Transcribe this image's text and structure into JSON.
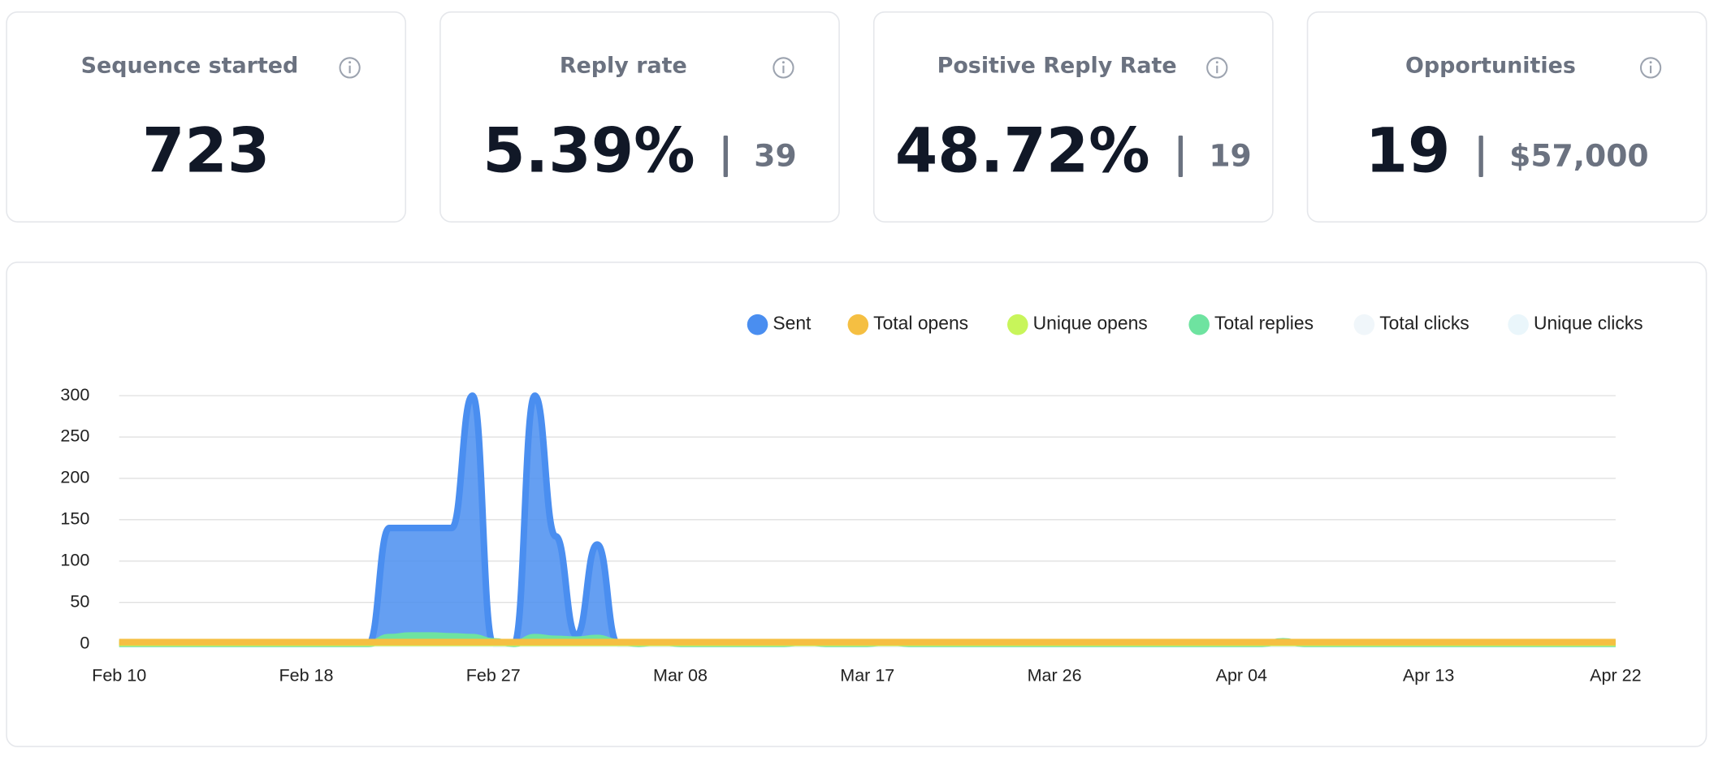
{
  "cards": [
    {
      "title": "Sequence started",
      "value": "723"
    },
    {
      "title": "Reply rate",
      "value": "5.39%",
      "secondary": "39"
    },
    {
      "title": "Positive Reply Rate",
      "value": "48.72%",
      "secondary": "19"
    },
    {
      "title": "Opportunities",
      "value": "19",
      "secondary": "$57,000"
    }
  ],
  "chart_data": {
    "type": "area",
    "legend": "top-right",
    "grid": true,
    "ylim": [
      0,
      300
    ],
    "yticks": [
      0,
      50,
      100,
      150,
      200,
      250,
      300
    ],
    "categories": [
      "Feb 10",
      null,
      null,
      null,
      null,
      null,
      null,
      null,
      null,
      "Feb 18",
      null,
      null,
      null,
      null,
      null,
      null,
      null,
      null,
      "Feb 27",
      null,
      null,
      null,
      null,
      null,
      null,
      null,
      null,
      "Mar 08",
      null,
      null,
      null,
      null,
      null,
      null,
      null,
      null,
      "Mar 17",
      null,
      null,
      null,
      null,
      null,
      null,
      null,
      null,
      "Mar 26",
      null,
      null,
      null,
      null,
      null,
      null,
      null,
      null,
      "Apr 04",
      null,
      null,
      null,
      null,
      null,
      null,
      null,
      null,
      "Apr 13",
      null,
      null,
      null,
      null,
      null,
      null,
      null,
      null,
      "Apr 22"
    ],
    "series": [
      {
        "name": "Sent",
        "color": "#4a8ef0",
        "values": [
          0,
          0,
          0,
          0,
          0,
          0,
          0,
          0,
          0,
          0,
          0,
          0,
          0,
          140,
          140,
          140,
          140,
          300,
          0,
          0,
          300,
          130,
          10,
          120,
          0,
          0,
          0,
          0,
          0,
          0,
          0,
          0,
          0,
          0,
          0,
          0,
          0,
          0,
          0,
          0,
          0,
          0,
          0,
          0,
          0,
          0,
          0,
          0,
          0,
          0,
          0,
          0,
          0,
          0,
          0,
          0,
          0,
          0,
          0,
          0,
          0,
          0,
          0,
          0,
          0,
          0,
          0,
          0,
          0,
          0,
          0,
          0,
          0
        ]
      },
      {
        "name": "Total opens",
        "color": "#f5bf42",
        "values": [
          2,
          2,
          2,
          2,
          2,
          2,
          2,
          2,
          2,
          2,
          2,
          2,
          2,
          2,
          2,
          2,
          2,
          2,
          2,
          2,
          2,
          2,
          2,
          2,
          2,
          2,
          2,
          2,
          2,
          2,
          2,
          2,
          2,
          2,
          2,
          2,
          2,
          2,
          2,
          2,
          2,
          2,
          2,
          2,
          2,
          2,
          2,
          2,
          2,
          2,
          2,
          2,
          2,
          2,
          2,
          2,
          2,
          2,
          2,
          2,
          2,
          2,
          2,
          2,
          2,
          2,
          2,
          2,
          2,
          2,
          2,
          2,
          2
        ]
      },
      {
        "name": "Unique opens",
        "color": "#c8f55a",
        "values": [
          1,
          1,
          1,
          1,
          1,
          1,
          1,
          1,
          1,
          1,
          1,
          1,
          1,
          1,
          1,
          1,
          1,
          1,
          1,
          1,
          1,
          1,
          1,
          1,
          1,
          1,
          1,
          1,
          1,
          1,
          1,
          1,
          1,
          1,
          1,
          1,
          1,
          1,
          1,
          1,
          1,
          1,
          1,
          1,
          1,
          1,
          1,
          1,
          1,
          1,
          1,
          1,
          1,
          1,
          1,
          1,
          1,
          1,
          1,
          1,
          1,
          1,
          1,
          1,
          1,
          1,
          1,
          1,
          1,
          1,
          1,
          1,
          1
        ]
      },
      {
        "name": "Total replies",
        "color": "#6ee3a0",
        "values": [
          0,
          0,
          0,
          0,
          0,
          0,
          0,
          0,
          0,
          0,
          0,
          0,
          0,
          8,
          10,
          10,
          9,
          8,
          3,
          0,
          8,
          6,
          5,
          7,
          2,
          0,
          2,
          0,
          0,
          0,
          0,
          0,
          0,
          2,
          0,
          0,
          0,
          2,
          0,
          0,
          0,
          0,
          0,
          0,
          0,
          0,
          0,
          0,
          0,
          0,
          0,
          0,
          0,
          0,
          0,
          0,
          3,
          0,
          0,
          0,
          0,
          0,
          0,
          0,
          0,
          0,
          0,
          0,
          0,
          0,
          0,
          0,
          0
        ]
      },
      {
        "name": "Total clicks",
        "color": "#f0f6fa",
        "hidden": true,
        "values": [
          0,
          0,
          0,
          0,
          0,
          0,
          0,
          0,
          0,
          0,
          0,
          0,
          0,
          0,
          0,
          0,
          0,
          0,
          0,
          0,
          0,
          0,
          0,
          0,
          0,
          0,
          0,
          0,
          0,
          0,
          0,
          0,
          0,
          0,
          0,
          0,
          0,
          0,
          0,
          0,
          0,
          0,
          0,
          0,
          0,
          0,
          0,
          0,
          0,
          0,
          0,
          0,
          0,
          0,
          0,
          0,
          0,
          0,
          0,
          0,
          0,
          0,
          0,
          0,
          0,
          0,
          0,
          0,
          0,
          0,
          0,
          0,
          0
        ]
      },
      {
        "name": "Unique clicks",
        "color": "#eaf6fb",
        "hidden": true,
        "values": [
          0,
          0,
          0,
          0,
          0,
          0,
          0,
          0,
          0,
          0,
          0,
          0,
          0,
          0,
          0,
          0,
          0,
          0,
          0,
          0,
          0,
          0,
          0,
          0,
          0,
          0,
          0,
          0,
          0,
          0,
          0,
          0,
          0,
          0,
          0,
          0,
          0,
          0,
          0,
          0,
          0,
          0,
          0,
          0,
          0,
          0,
          0,
          0,
          0,
          0,
          0,
          0,
          0,
          0,
          0,
          0,
          0,
          0,
          0,
          0,
          0,
          0,
          0,
          0,
          0,
          0,
          0,
          0,
          0,
          0,
          0,
          0,
          0
        ]
      }
    ]
  }
}
